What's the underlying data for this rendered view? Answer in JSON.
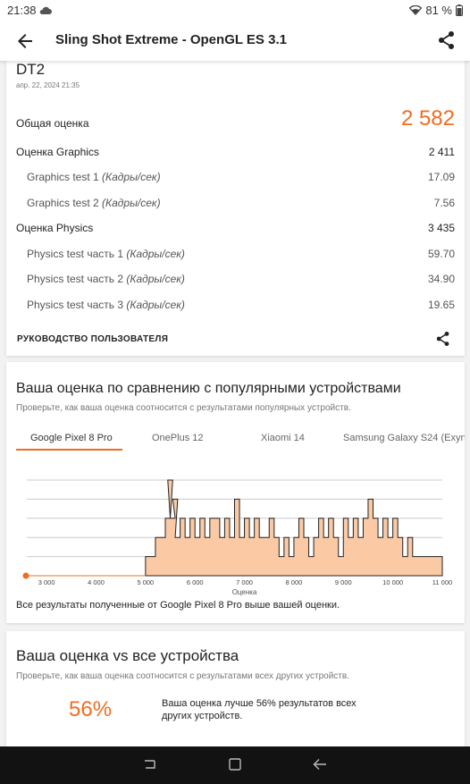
{
  "status": {
    "time": "21:38",
    "battery": "81 %"
  },
  "app_bar": {
    "title": "Sling Shot Extreme - OpenGL ES 3.1"
  },
  "result": {
    "device": "DT2",
    "date": "апр. 22, 2024 21:35",
    "overall_label": "Общая оценка",
    "overall_value": "2 582",
    "rows": [
      {
        "label": "Оценка Graphics",
        "unit": "",
        "value": "2 411"
      },
      {
        "label": "Graphics test 1 ",
        "unit": "(Кадры/сек)",
        "value": "17.09"
      },
      {
        "label": "Graphics test 2 ",
        "unit": "(Кадры/сек)",
        "value": "7.56"
      },
      {
        "label": "Оценка Physics",
        "unit": "",
        "value": "3 435"
      },
      {
        "label": "Physics test часть 1 ",
        "unit": "(Кадры/сек)",
        "value": "59.70"
      },
      {
        "label": "Physics test часть 2 ",
        "unit": "(Кадры/сек)",
        "value": "34.90"
      },
      {
        "label": "Physics test часть 3 ",
        "unit": "(Кадры/сек)",
        "value": "19.65"
      }
    ],
    "guide_label": "РУКОВОДСТВО ПОЛЬЗОВАТЕЛЯ"
  },
  "comparison": {
    "title": "Ваша оценка по сравнению с популярными устройствами",
    "subtitle": "Проверьте, как ваша оценка соотносится с результатами популярных устройств.",
    "tabs": [
      "Google Pixel 8 Pro",
      "OnePlus 12",
      "Xiaomi 14",
      "Samsung Galaxy S24 (Exyn"
    ],
    "active_tab": 0,
    "footer": "Все результаты полученные от Google Pixel 8 Pro выше вашей оценки."
  },
  "chart_data": {
    "type": "area",
    "xlabel": "Оценка",
    "x_ticks": [
      "3 000",
      "4 000",
      "5 000",
      "6 000",
      "7 000",
      "8 000",
      "9 000",
      "10 000",
      "11 000"
    ],
    "xlim": [
      2600,
      11000
    ],
    "ylim": [
      0,
      5
    ],
    "grid": true,
    "your_score": 2582,
    "colors": {
      "fill": "#fbcaa5",
      "line": "#222222",
      "marker": "#f26c1f",
      "grid": "#cccccc"
    },
    "series": [
      {
        "values": [
          [
            5000,
            1
          ],
          [
            5100,
            1
          ],
          [
            5200,
            2
          ],
          [
            5300,
            2
          ],
          [
            5400,
            3
          ],
          [
            5450,
            5
          ],
          [
            5500,
            3
          ],
          [
            5550,
            4
          ],
          [
            5600,
            2
          ],
          [
            5700,
            3
          ],
          [
            5800,
            2
          ],
          [
            5900,
            3
          ],
          [
            6000,
            2
          ],
          [
            6100,
            3
          ],
          [
            6200,
            2
          ],
          [
            6300,
            3
          ],
          [
            6400,
            3
          ],
          [
            6500,
            2
          ],
          [
            6600,
            3
          ],
          [
            6700,
            2
          ],
          [
            6800,
            4
          ],
          [
            6900,
            2
          ],
          [
            7000,
            3
          ],
          [
            7100,
            2
          ],
          [
            7200,
            3
          ],
          [
            7300,
            2
          ],
          [
            7400,
            2
          ],
          [
            7500,
            3
          ],
          [
            7600,
            2
          ],
          [
            7700,
            1
          ],
          [
            7800,
            2
          ],
          [
            7900,
            1
          ],
          [
            8000,
            2
          ],
          [
            8100,
            3
          ],
          [
            8200,
            2
          ],
          [
            8300,
            1
          ],
          [
            8400,
            2
          ],
          [
            8500,
            3
          ],
          [
            8600,
            2
          ],
          [
            8700,
            3
          ],
          [
            8800,
            2
          ],
          [
            8900,
            1
          ],
          [
            9000,
            3
          ],
          [
            9100,
            2
          ],
          [
            9200,
            3
          ],
          [
            9300,
            2
          ],
          [
            9400,
            3
          ],
          [
            9500,
            4
          ],
          [
            9600,
            3
          ],
          [
            9700,
            2
          ],
          [
            9800,
            3
          ],
          [
            9900,
            2
          ],
          [
            10000,
            3
          ],
          [
            10100,
            2
          ],
          [
            10200,
            1
          ],
          [
            10300,
            2
          ],
          [
            10400,
            1
          ],
          [
            10500,
            1
          ],
          [
            10600,
            1
          ],
          [
            10700,
            1
          ],
          [
            10800,
            1
          ],
          [
            10900,
            1
          ]
        ]
      }
    ]
  },
  "all_devices": {
    "title": "Ваша оценка vs все устройства",
    "subtitle": "Проверьте, как ваша оценка соотносится с результатами всех других устройств.",
    "percent": "56%",
    "description": "Ваша оценка лучше 56% результатов всех других устройств."
  }
}
